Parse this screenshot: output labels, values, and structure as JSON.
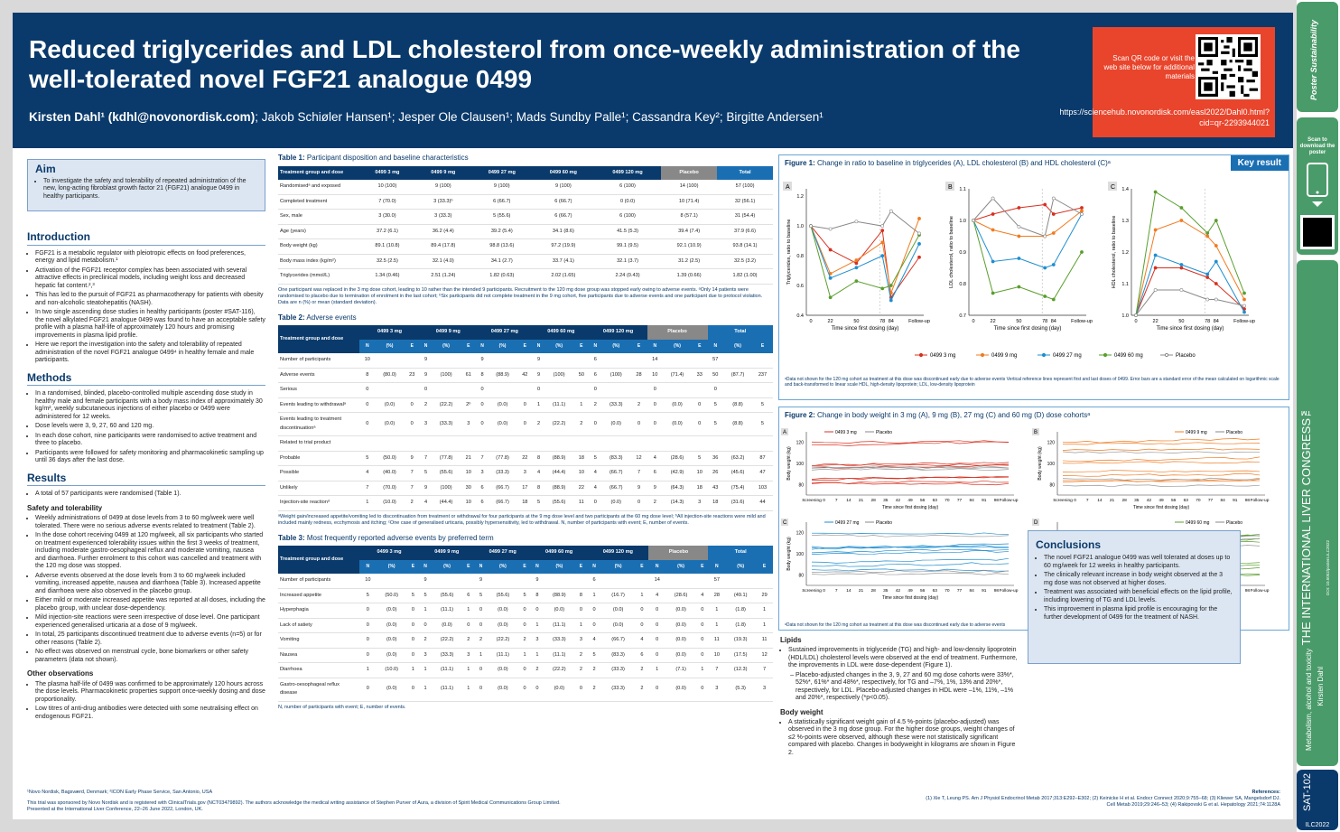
{
  "header": {
    "title": "Reduced triglycerides and LDL cholesterol from once-weekly administration of the well-tolerated novel FGF21 analogue 0499",
    "author_main": "Kirsten Dahl¹ (kdhl@novonordisk.com)",
    "authors_rest": "; Jakob Schiøler Hansen¹; Jesper Ole Clausen¹; Mads Sundby Palle¹; Cassandra Key²; Birgitte Andersen¹"
  },
  "qr": {
    "text": "Scan QR code or visit the web site below for additional materials",
    "url": "https://sciencehub.novonordisk.com/easl2022/Dahl0.html?cid=qr-2293944021"
  },
  "aim": {
    "heading": "Aim",
    "text": "To investigate the safety and tolerability of repeated administration of the new, long-acting fibroblast growth factor 21 (FGF21) analogue 0499 in healthy participants."
  },
  "intro": {
    "heading": "Introduction",
    "items": [
      "FGF21 is a metabolic regulator with pleiotropic effects on food preferences, energy and lipid metabolism.¹",
      "Activation of the FGF21 receptor complex has been associated with several attractive effects in preclinical models, including weight loss and decreased hepatic fat content.²,³",
      "This has led to the pursuit of FGF21 as pharmacotherapy for patients with obesity and non-alcoholic steatohepatitis (NASH).",
      "In two single ascending dose studies in healthy participants (poster #SAT-116), the novel alkylated FGF21 analogue 0499 was found to have an acceptable safety profile with a plasma half-life of approximately 120 hours and promising improvements in plasma lipid profile.",
      "Here we report the investigation into the safety and tolerability of repeated administration of the novel FGF21 analogue 0499⁴ in healthy female and male participants."
    ]
  },
  "methods": {
    "heading": "Methods",
    "items": [
      "In a randomised, blinded, placebo-controlled multiple ascending dose study in healthy male and female participants with a body mass index of approximately 30 kg/m², weekly subcutaneous injections of either placebo or 0499 were administered for 12 weeks.",
      "Dose levels were 3, 9, 27, 60 and 120 mg.",
      "In each dose cohort, nine participants were randomised to active treatment and three to placebo.",
      "Participants were followed for safety monitoring and pharmacokinetic sampling up until 36 days after the last dose."
    ]
  },
  "results": {
    "heading": "Results",
    "intro": "A total of 57 participants were randomised (Table 1).",
    "safety_heading": "Safety and tolerability",
    "safety_items": [
      "Weekly administrations of 0499 at dose levels from 3 to 60 mg/week were well tolerated. There were no serious adverse events related to treatment (Table 2).",
      "In the dose cohort receiving 0499 at 120 mg/week, all six participants who started on treatment experienced tolerability issues within the first 3 weeks of treatment, including moderate gastro-oesophageal reflux and moderate vomiting, nausea and diarrhoea. Further enrolment to this cohort was cancelled and treatment with the 120 mg dose was stopped.",
      "Adverse events observed at the dose levels from 3 to 60 mg/week included vomiting, increased appetite, nausea and diarrhoea (Table 3). Increased appetite and diarrhoea were also observed in the placebo group.",
      "Either mild or moderate increased appetite was reported at all doses, including the placebo group, with unclear dose-dependency.",
      "Mild injection-site reactions were seen irrespective of dose level. One participant experienced generalised urticaria at a dose of 9 mg/week.",
      "In total, 25 participants discontinued treatment due to adverse events (n=5) or for other reasons (Table 2).",
      "No effect was observed on menstrual cycle, bone biomarkers or other safety parameters (data not shown)."
    ],
    "other_heading": "Other observations",
    "other_items": [
      "The plasma half-life of 0499 was confirmed to be approximately 120 hours across the dose levels. Pharmacokinetic properties support once-weekly dosing and dose proportionality.",
      "Low titres of anti-drug antibodies were detected with some neutralising effect on endogenous FGF21."
    ]
  },
  "table1": {
    "label": "Table 1:",
    "title": "Participant disposition and baseline characteristics",
    "headers": [
      "Treatment group and dose",
      "0499 3 mg",
      "0499 9 mg",
      "0499 27 mg",
      "0499 60 mg",
      "0499 120 mg",
      "Placebo",
      "Total"
    ],
    "rows": [
      [
        "Randomisedᵃ and exposed",
        "10 (100)",
        "9 (100)",
        "9 (100)",
        "9 (100)",
        "6 (100)",
        "14 (100)",
        "57 (100)"
      ],
      [
        "Completed treatment",
        "7 (70.0)",
        "3 (33.3)ᵇ",
        "6 (66.7)",
        "6 (66.7)",
        "0 (0.0)",
        "10 (71.4)",
        "32 (56.1)"
      ],
      [
        "Sex, male",
        "3 (30.0)",
        "3 (33.3)",
        "5 (55.6)",
        "6 (66.7)",
        "6 (100)",
        "8 (57.1)",
        "31 (54.4)"
      ],
      [
        "Age (years)",
        "37.2 (6.1)",
        "36.2 (4.4)",
        "39.2 (5.4)",
        "34.1 (8.6)",
        "41.5 (5.3)",
        "39.4 (7.4)",
        "37.9 (6.6)"
      ],
      [
        "Body weight (kg)",
        "89.1 (10.8)",
        "89.4 (17.8)",
        "98.8 (13.6)",
        "97.2 (19.9)",
        "99.1 (9.5)",
        "92.1 (10.9)",
        "93.8 (14.1)"
      ],
      [
        "Body mass index (kg/m²)",
        "32.5 (2.5)",
        "32.1 (4.0)",
        "34.1 (2.7)",
        "33.7 (4.1)",
        "32.1 (3.7)",
        "31.2 (2.5)",
        "32.5 (3.2)"
      ],
      [
        "Triglycerides (mmol/L)",
        "1.34 (0.46)",
        "2.51 (1.24)",
        "1.82 (0.63)",
        "2.02 (1.65)",
        "2.24 (0.43)",
        "1.39 (0.66)",
        "1.82 (1.00)"
      ]
    ],
    "footnote": "One participant was replaced in the 3 mg dose cohort, leading to 10 rather than the intended 9 participants. Recruitment to the 120 mg dose group was stopped early owing to adverse events. ᵃOnly 14 patients were randomised to placebo due to termination of enrolment in the last cohort; ᵇSix participants did not complete treatment in the 9 mg cohort, five participants due to adverse events and one participant due to protocol violation. Data are n (%) or mean (standard deviation)."
  },
  "table2": {
    "label": "Table 2:",
    "title": "Adverse events",
    "groups": [
      "0499 3 mg",
      "0499 9 mg",
      "0499 27 mg",
      "0499 60 mg",
      "0499 120 mg",
      "Placebo",
      "Total"
    ],
    "sub": [
      "N",
      "(%)",
      "E"
    ],
    "rows": [
      [
        "Number of participants",
        "10",
        "",
        "",
        "9",
        "",
        "",
        "9",
        "",
        "",
        "9",
        "",
        "",
        "6",
        "",
        "",
        "14",
        "",
        "",
        "57",
        "",
        ""
      ],
      [
        "Adverse events",
        "8",
        "(80.0)",
        "23",
        "9",
        "(100)",
        "61",
        "8",
        "(88.9)",
        "42",
        "9",
        "(100)",
        "50",
        "6",
        "(100)",
        "28",
        "10",
        "(71.4)",
        "33",
        "50",
        "(87.7)",
        "237"
      ],
      [
        "Serious",
        "0",
        "",
        "",
        "0",
        "",
        "",
        "0",
        "",
        "",
        "0",
        "",
        "",
        "0",
        "",
        "",
        "0",
        "",
        "",
        "0",
        "",
        ""
      ],
      [
        "Events leading to withdrawalᵃ",
        "0",
        "(0.0)",
        "0",
        "2",
        "(22.2)",
        "2ᵇ",
        "0",
        "(0.0)",
        "0",
        "1",
        "(11.1)",
        "1",
        "2",
        "(33.3)",
        "2",
        "0",
        "(0.0)",
        "0",
        "5",
        "(8.8)",
        "5"
      ],
      [
        "Events leading to treatment discontinuationᵃ",
        "0",
        "(0.0)",
        "0",
        "3",
        "(33.3)",
        "3",
        "0",
        "(0.0)",
        "0",
        "2",
        "(22.2)",
        "2",
        "0",
        "(0.0)",
        "0",
        "0",
        "(0.0)",
        "0",
        "5",
        "(8.8)",
        "5"
      ],
      [
        "Related to trial product",
        "",
        "",
        "",
        "",
        "",
        "",
        "",
        "",
        "",
        "",
        "",
        "",
        "",
        "",
        "",
        "",
        "",
        "",
        "",
        "",
        ""
      ],
      [
        "Probable",
        "5",
        "(50.0)",
        "9",
        "7",
        "(77.8)",
        "21",
        "7",
        "(77.8)",
        "22",
        "8",
        "(88.9)",
        "18",
        "5",
        "(83.3)",
        "12",
        "4",
        "(28.6)",
        "5",
        "36",
        "(63.2)",
        "87"
      ],
      [
        "Possible",
        "4",
        "(40.0)",
        "7",
        "5",
        "(55.6)",
        "10",
        "3",
        "(33.3)",
        "3",
        "4",
        "(44.4)",
        "10",
        "4",
        "(66.7)",
        "7",
        "6",
        "(42.9)",
        "10",
        "26",
        "(45.6)",
        "47"
      ],
      [
        "Unlikely",
        "7",
        "(70.0)",
        "7",
        "9",
        "(100)",
        "30",
        "6",
        "(66.7)",
        "17",
        "8",
        "(88.9)",
        "22",
        "4",
        "(66.7)",
        "9",
        "9",
        "(64.3)",
        "18",
        "43",
        "(75.4)",
        "103"
      ],
      [
        "Injection-site reactionᵈ",
        "1",
        "(10.0)",
        "2",
        "4",
        "(44.4)",
        "10",
        "6",
        "(66.7)",
        "18",
        "5",
        "(55.6)",
        "11",
        "0",
        "(0.0)",
        "0",
        "2",
        "(14.3)",
        "3",
        "18",
        "(31.6)",
        "44"
      ]
    ],
    "footnote": "ᵃWeight gain/increased appetite/vomiting led to discontinuation from treatment or withdrawal for four participants at the 9 mg dose level and two participants at the 60 mg dose level; ᵇAll injection-site reactions were mild and included mainly redness, ecchymosis and itching; ᶜOne case of generalised urticaria, possibly hypersensitivity, led to withdrawal. N, number of participants with event; E, number of events."
  },
  "table3": {
    "label": "Table 3:",
    "title": "Most frequently reported adverse events by preferred term",
    "rows": [
      [
        "Number of participants",
        "10",
        "",
        "",
        "9",
        "",
        "",
        "9",
        "",
        "",
        "9",
        "",
        "",
        "6",
        "",
        "",
        "14",
        "",
        "",
        "57",
        "",
        ""
      ],
      [
        "Increased appetite",
        "5",
        "(50.0)",
        "5",
        "5",
        "(55.6)",
        "6",
        "5",
        "(55.6)",
        "5",
        "8",
        "(88.9)",
        "8",
        "1",
        "(16.7)",
        "1",
        "4",
        "(28.6)",
        "4",
        "28",
        "(49.1)",
        "29"
      ],
      [
        "Hyperphagia",
        "0",
        "(0.0)",
        "0",
        "1",
        "(11.1)",
        "1",
        "0",
        "(0.0)",
        "0",
        "0",
        "(0.0)",
        "0",
        "0",
        "(0.0)",
        "0",
        "0",
        "(0.0)",
        "0",
        "1",
        "(1.8)",
        "1"
      ],
      [
        "Lack of satiety",
        "0",
        "(0.0)",
        "0",
        "0",
        "(0.0)",
        "0",
        "0",
        "(0.0)",
        "0",
        "1",
        "(11.1)",
        "1",
        "0",
        "(0.0)",
        "0",
        "0",
        "(0.0)",
        "0",
        "1",
        "(1.8)",
        "1"
      ],
      [
        "Vomiting",
        "0",
        "(0.0)",
        "0",
        "2",
        "(22.2)",
        "2",
        "2",
        "(22.2)",
        "2",
        "3",
        "(33.3)",
        "3",
        "4",
        "(66.7)",
        "4",
        "0",
        "(0.0)",
        "0",
        "11",
        "(19.3)",
        "11"
      ],
      [
        "Nausea",
        "0",
        "(0.0)",
        "0",
        "3",
        "(33.3)",
        "3",
        "1",
        "(11.1)",
        "1",
        "1",
        "(11.1)",
        "2",
        "5",
        "(83.3)",
        "6",
        "0",
        "(0.0)",
        "0",
        "10",
        "(17.5)",
        "12"
      ],
      [
        "Diarrhoea",
        "1",
        "(10.0)",
        "1",
        "1",
        "(11.1)",
        "1",
        "0",
        "(0.0)",
        "0",
        "2",
        "(22.2)",
        "2",
        "2",
        "(33.3)",
        "2",
        "1",
        "(7.1)",
        "1",
        "7",
        "(12.3)",
        "7"
      ],
      [
        "Gastro-oesophageal reflux disease",
        "0",
        "(0.0)",
        "0",
        "1",
        "(11.1)",
        "1",
        "0",
        "(0.0)",
        "0",
        "0",
        "(0.0)",
        "0",
        "2",
        "(33.3)",
        "2",
        "0",
        "(0.0)",
        "0",
        "3",
        "(5.3)",
        "3"
      ]
    ],
    "footnote": "N, number of participants with event; E, number of events."
  },
  "fig1": {
    "label": "Figure 1:",
    "title": "Change in ratio to baseline in triglycerides (A), LDL cholesterol (B) and HDL cholesterol (C)ᵃ",
    "key_result": "Key result",
    "panels": [
      "A",
      "B",
      "C"
    ],
    "ylabels": [
      "Triglycerides, ratio to baseline",
      "LDL cholesterol, ratio to baseline",
      "HDL cholesterol, ratio to baseline"
    ],
    "xlabel": "Time since first dosing (day)",
    "xticks": [
      "0",
      "22",
      "50",
      "78",
      "84",
      "Follow-up"
    ],
    "legend": [
      "0499 3 mg",
      "0499 9 mg",
      "0499 27 mg",
      "0499 60 mg",
      "Placebo"
    ],
    "colors": [
      "#d7301f",
      "#f07b20",
      "#1f8ed0",
      "#5a9e2e",
      "#888888"
    ],
    "footnote": "ᵃData not shown for the 120 mg cohort as treatment at this dose was discontinued early due to adverse events Vertical reference lines represent first and last doses of 0499. Error bars are a standard error of the mean calculated on logarithmic scale and back-transformed to linear scale HDL, high-density lipoprotein; LDL, low-density lipoprotein"
  },
  "fig2": {
    "label": "Figure 2:",
    "title": "Change in body weight in 3 mg (A), 9 mg (B), 27 mg (C) and 60 mg (D) dose cohortsᵃ",
    "panels": [
      "A",
      "B",
      "C",
      "D"
    ],
    "legends": [
      "0499 3 mg",
      "0499 9 mg",
      "0499 27 mg",
      "0499 60 mg"
    ],
    "placebo": "Placebo",
    "ylabel": "Body weight (kg)",
    "xlabel": "Time since first dosing (day)",
    "xticks": [
      "Screening",
      "0",
      "7",
      "14",
      "21",
      "28",
      "35",
      "42",
      "49",
      "56",
      "63",
      "70",
      "77",
      "84",
      "91",
      "98",
      "Follow-up"
    ],
    "footnote": "ᵃData not shown for the 120 mg cohort as treatment at this dose was discontinued early due to adverse events"
  },
  "lipids": {
    "heading": "Lipids",
    "text": "Sustained improvements in triglyceride (TG) and high- and low-density lipoprotein (HDL/LDL) cholesterol levels were observed at the end of treatment. Furthermore, the improvements in LDL were dose-dependent (Figure 1).",
    "sub": "Placebo-adjusted changes in the 3, 9, 27 and 60 mg dose cohorts were 33%*, 52%*, 61%* and 48%*, respectively, for TG and –7%, 1%, 13% and 20%*, respectively, for LDL. Placebo-adjusted changes in HDL were –1%, 11%, –1% and 20%*, respectively (*p<0.05)."
  },
  "bodyweight": {
    "heading": "Body weight",
    "text": "A statistically significant weight gain of 4.5 %-points (placebo-adjusted) was observed in the 3 mg dose group. For the higher dose groups, weight changes of ≤2 %-points were observed, although these were not statistically significant compared with placebo. Changes in bodyweight in kilograms are shown in Figure 2."
  },
  "conclusions": {
    "heading": "Conclusions",
    "items": [
      "The novel FGF21 analogue 0499 was well tolerated at doses up to 60 mg/week for 12 weeks in healthy participants.",
      "The clinically relevant increase in body weight observed at the 3 mg dose was not observed at higher doses.",
      "Treatment was associated with beneficial effects on the lipid profile, including lowering of TG and LDL levels.",
      "This improvement in plasma lipid profile is encouraging for the further development of 0499 for the treatment of NASH."
    ]
  },
  "footer": {
    "affil": "¹Novo Nordisk, Bagsværd, Denmark; ²ICON Early Phase Service, San Antonio, USA",
    "sponsor": "This trial was sponsored by Novo Nordisk and is registered with ClinicalTrials.gov (NCT03479892). The authors acknowledge the medical writing assistance of Stephen Purver of Aura, a division of Spirit Medical Communications Group Limited.",
    "presented": "Presented at the International Liver Conference, 22–26 June 2022, London, UK.",
    "refs_heading": "References:",
    "refs": "(1) Xie T, Leung PS. Am J Physiol Endocrinol Metab 2017;313:E292–E302; (2) Keinicke H et al. Endocr Connect 2020;9:755–68; (3) Kliewer SA, Mangelsdorf DJ. Cell Metab 2019;29:246–53; (4) Rakipovski G et al. Hepatology 2021;74:1128A"
  },
  "sidebar": {
    "brand": "Poster Sustainability",
    "scan": "Scan to download the poster",
    "congress": "THE INTERNATIONAL LIVER CONGRESS™",
    "topic": "Metabolism, alcohol and toxicity",
    "author": "Kirsten Dahl",
    "code": "SAT-102",
    "year": "ILC2022",
    "doi": "DOI: 10.5052/posters.ILC2022"
  }
}
